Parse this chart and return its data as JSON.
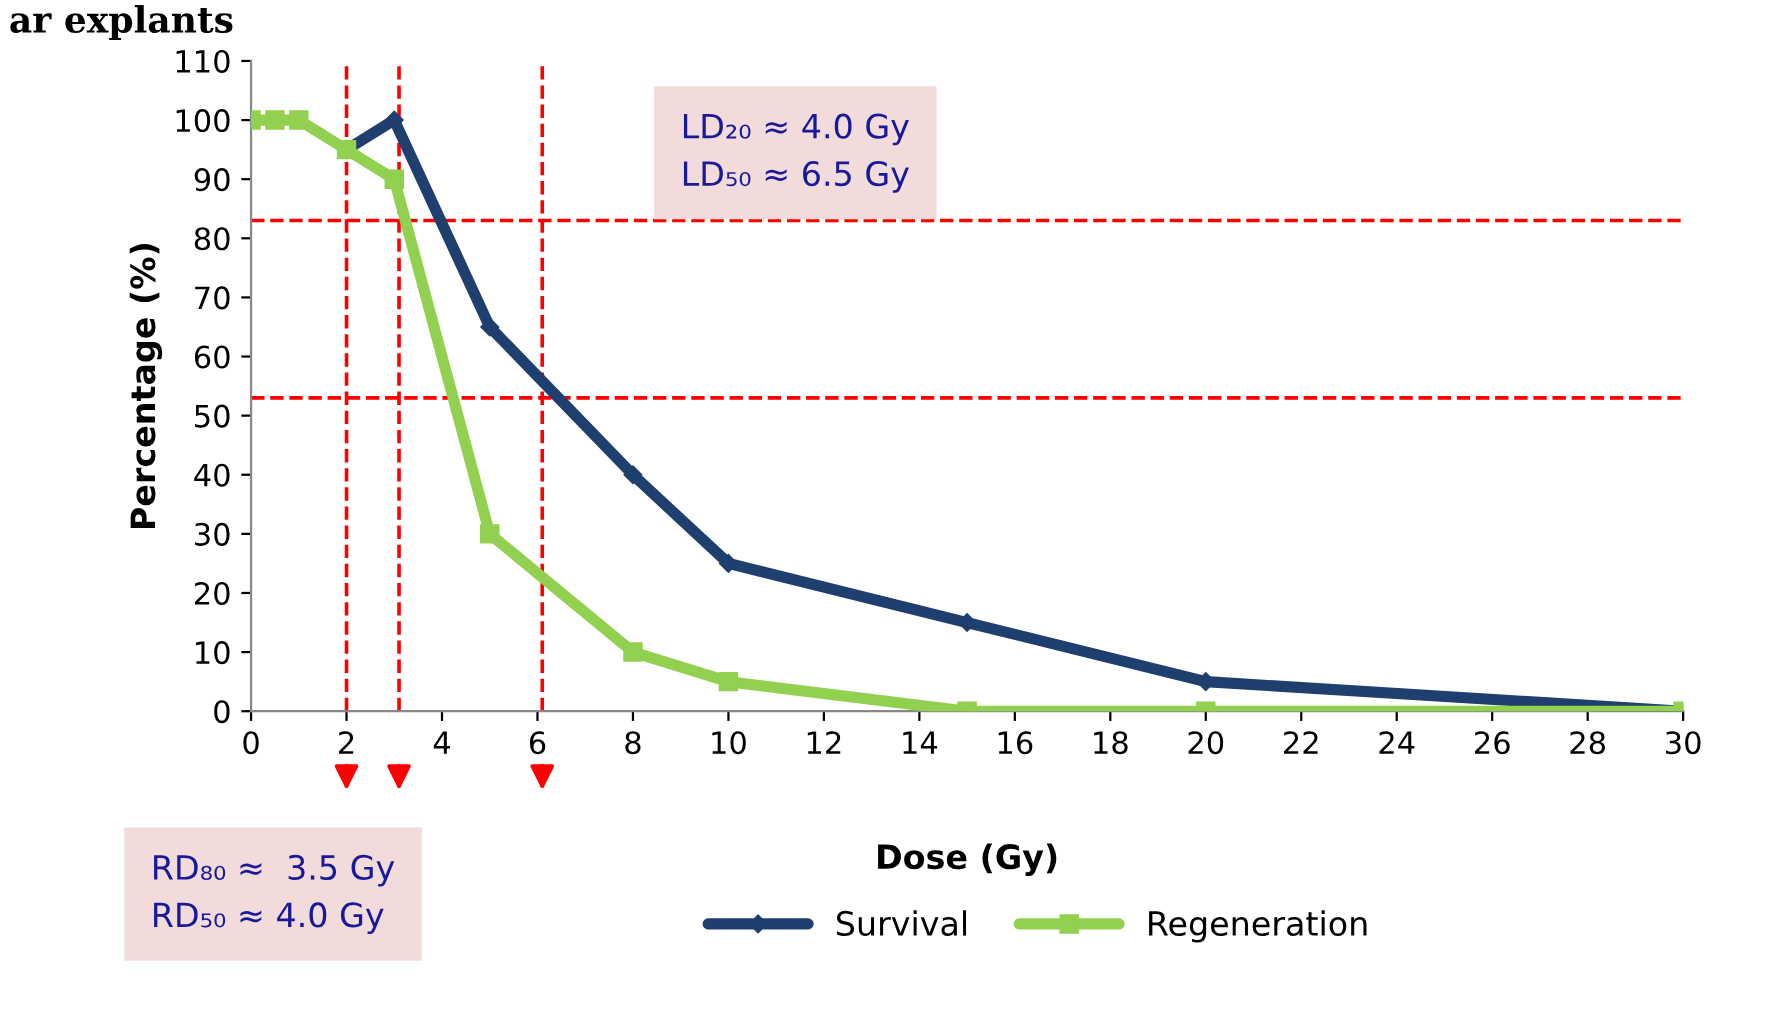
{
  "chart_data": {
    "type": "line",
    "title": "ar explants",
    "xlabel": "Dose (Gy)",
    "ylabel": "Percentage (%)",
    "x": [
      0,
      0.5,
      1,
      2,
      3,
      5,
      8,
      10,
      15,
      20,
      30
    ],
    "series": [
      {
        "name": "Survival",
        "color": "#1f3f6e",
        "marker": "diamond",
        "values": [
          null,
          null,
          null,
          95,
          100,
          65,
          40,
          25,
          15,
          5,
          0
        ]
      },
      {
        "name": "Regeneration",
        "color": "#92d050",
        "marker": "square",
        "values": [
          100,
          100,
          100,
          95,
          90,
          30,
          10,
          5,
          0,
          0,
          0
        ]
      }
    ],
    "xlim": [
      0,
      30
    ],
    "xticks": [
      0,
      2,
      4,
      6,
      8,
      10,
      12,
      14,
      16,
      18,
      20,
      22,
      24,
      26,
      28,
      30
    ],
    "ylim": [
      0,
      110
    ],
    "yticks": [
      0,
      10,
      20,
      30,
      40,
      50,
      60,
      70,
      80,
      90,
      100,
      110
    ],
    "ref_lines": [
      {
        "axis": "y",
        "value": 83,
        "color": "#ff0000",
        "line_style": "dashed"
      },
      {
        "axis": "y",
        "value": 53,
        "color": "#ff0000",
        "line_style": "dashed"
      },
      {
        "axis": "x",
        "value": 2,
        "color": "#ff0000",
        "line_style": "dashed"
      },
      {
        "axis": "x",
        "value": 3.1,
        "color": "#ff0000",
        "line_style": "dashed"
      },
      {
        "axis": "x",
        "value": 6.1,
        "color": "#ff0000",
        "line_style": "dashed"
      }
    ],
    "annotations": [
      "LD₂₀ ≈ 4.0 Gy\nLD₅₀ ≈ 6.5 Gy",
      "RD₈₀ ≈  3.5 Gy\nRD₅₀ ≈ 4.0 Gy"
    ],
    "grid": false,
    "legend": "bottom"
  }
}
